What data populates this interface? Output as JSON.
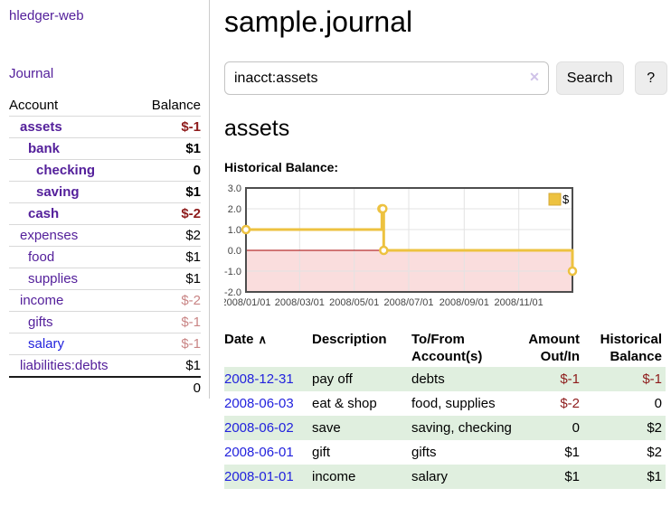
{
  "app": {
    "title": "hledger-web"
  },
  "sidebar": {
    "journal_label": "Journal",
    "accounts_table": {
      "headers": [
        "Account",
        "Balance"
      ],
      "rows": [
        {
          "name": "assets",
          "indent": 0,
          "bold": true,
          "balance": "$-1",
          "balance_style": "neg",
          "name_style": "purple"
        },
        {
          "name": "bank",
          "indent": 1,
          "bold": true,
          "balance": "$1",
          "balance_style": "",
          "name_style": "purple"
        },
        {
          "name": "checking",
          "indent": 2,
          "bold": true,
          "balance": "0",
          "balance_style": "",
          "name_style": "purple"
        },
        {
          "name": "saving",
          "indent": 2,
          "bold": true,
          "balance": "$1",
          "balance_style": "",
          "name_style": "purple"
        },
        {
          "name": "cash",
          "indent": 1,
          "bold": true,
          "balance": "$-2",
          "balance_style": "neg",
          "name_style": "purple"
        },
        {
          "name": "expenses",
          "indent": 0,
          "bold": false,
          "balance": "$2",
          "balance_style": "",
          "name_style": "purple"
        },
        {
          "name": "food",
          "indent": 1,
          "bold": false,
          "balance": "$1",
          "balance_style": "",
          "name_style": "purple"
        },
        {
          "name": "supplies",
          "indent": 1,
          "bold": false,
          "balance": "$1",
          "balance_style": "",
          "name_style": "purple"
        },
        {
          "name": "income",
          "indent": 0,
          "bold": false,
          "balance": "$-2",
          "balance_style": "soft",
          "name_style": "purple"
        },
        {
          "name": "gifts",
          "indent": 1,
          "bold": false,
          "balance": "$-1",
          "balance_style": "soft",
          "name_style": "purple"
        },
        {
          "name": "salary",
          "indent": 1,
          "bold": false,
          "balance": "$-1",
          "balance_style": "soft",
          "name_style": "blue"
        },
        {
          "name": "liabilities:debts",
          "indent": 0,
          "bold": false,
          "balance": "$1",
          "balance_style": "",
          "name_style": "purple"
        }
      ],
      "total": "0"
    }
  },
  "main": {
    "title": "sample.journal",
    "search": {
      "value": "inacct:assets",
      "clear_icon": "✕",
      "button_label": "Search",
      "help_label": "?"
    },
    "account_heading": "assets",
    "register_table": {
      "headers": [
        {
          "label": "Date",
          "sort_icon": "∧"
        },
        {
          "label": "Description"
        },
        {
          "label": "To/From Account(s)"
        },
        {
          "label": "Amount Out/In"
        },
        {
          "label": "Historical Balance"
        }
      ],
      "rows": [
        {
          "date": "2008-12-31",
          "description": "pay off",
          "accounts": "debts",
          "amount": "$-1",
          "amount_style": "neg",
          "balance": "$-1",
          "balance_style": "neg"
        },
        {
          "date": "2008-06-03",
          "description": "eat & shop",
          "accounts": "food, supplies",
          "amount": "$-2",
          "amount_style": "neg",
          "balance": "0",
          "balance_style": ""
        },
        {
          "date": "2008-06-02",
          "description": "save",
          "accounts": "saving, checking",
          "amount": "0",
          "amount_style": "",
          "balance": "$2",
          "balance_style": ""
        },
        {
          "date": "2008-06-01",
          "description": "gift",
          "accounts": "gifts",
          "amount": "$1",
          "amount_style": "",
          "balance": "$2",
          "balance_style": ""
        },
        {
          "date": "2008-01-01",
          "description": "income",
          "accounts": "salary",
          "amount": "$1",
          "amount_style": "",
          "balance": "$1",
          "balance_style": ""
        }
      ]
    }
  },
  "chart_data": {
    "type": "line",
    "step": true,
    "title": "Historical Balance:",
    "series": [
      {
        "name": "$",
        "color": "#edc240",
        "x": [
          "2008-01-01",
          "2008-06-01",
          "2008-06-02",
          "2008-06-03",
          "2008-12-31"
        ],
        "values": [
          1,
          2,
          2,
          0,
          -1
        ]
      }
    ],
    "x_ticks": [
      "2008/01/01",
      "2008/03/01",
      "2008/05/01",
      "2008/07/01",
      "2008/09/01",
      "2008/11/01"
    ],
    "y_ticks": [
      "3.0",
      "2.0",
      "1.0",
      "0.0",
      "-1.0",
      "-2.0"
    ],
    "xlim": [
      "2008-01-01",
      "2008-12-31"
    ],
    "ylim": [
      -2,
      3
    ],
    "grid": true,
    "legend": {
      "label": "$",
      "position": "top-right"
    },
    "colors": {
      "negative_region": "#fadddd",
      "zero_line": "#a40000",
      "gridline": "#e3e3e3",
      "border": "#4d4d4d",
      "marker_fill": "#ffffff",
      "legend_swatch_border": "#d4a938"
    }
  }
}
